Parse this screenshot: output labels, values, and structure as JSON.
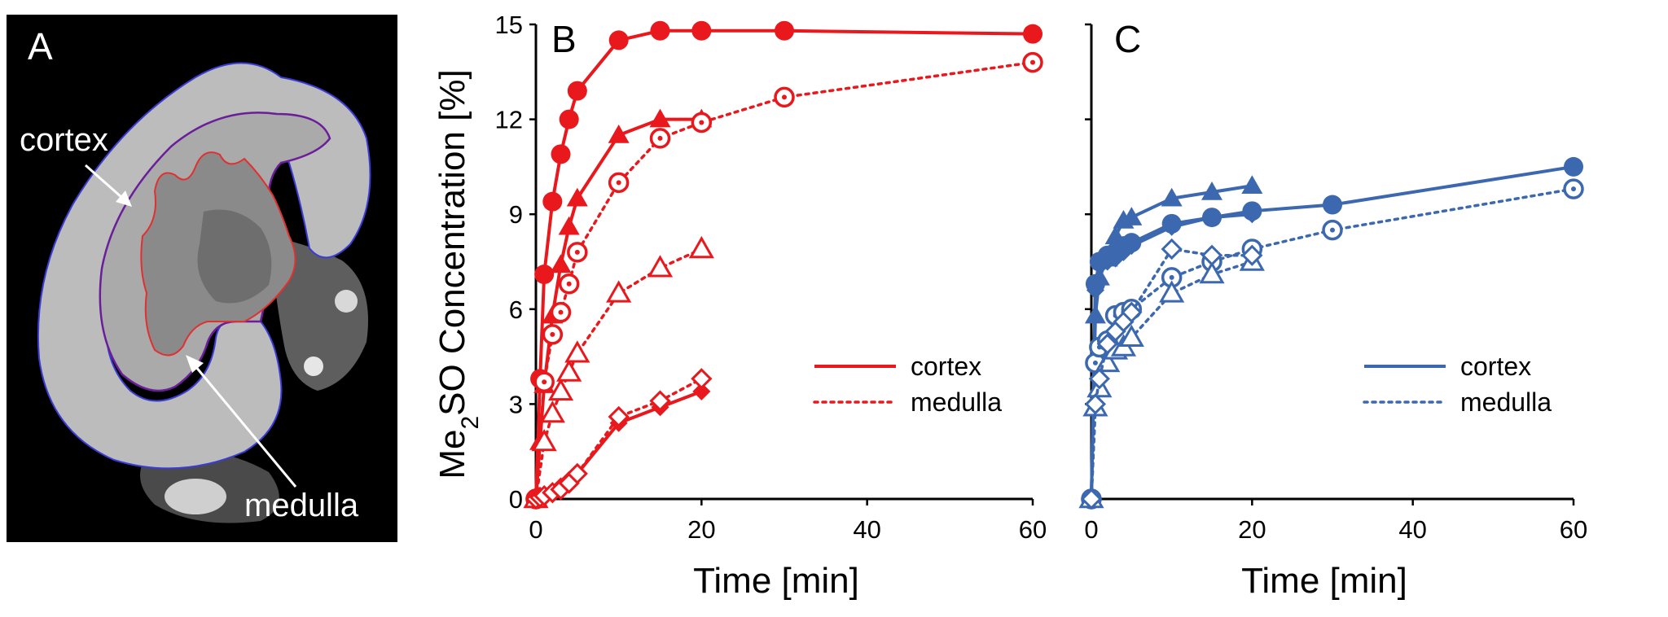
{
  "figure": {
    "panel_a": {
      "letter": "A",
      "label_cortex": "cortex",
      "label_medulla": "medulla",
      "colors": {
        "outer_contour": "#3b3bd6",
        "cortex_contour": "#6a1e9a",
        "medulla_contour": "#e03030"
      }
    },
    "ylabel_main": "Me",
    "ylabel_sub": "2",
    "ylabel_rest": "SO Concentration [%]",
    "colors": {
      "red": "#e8181c",
      "blue": "#3c68b0"
    }
  },
  "chart_data": [
    {
      "panel": "B",
      "type": "line",
      "color": "#e8181c",
      "xlabel": "Time [min]",
      "ylabel": "Me2SO Concentration [%]",
      "xlim": [
        0,
        60
      ],
      "ylim": [
        0,
        15
      ],
      "xticks": [
        "0",
        "20",
        "40",
        "60"
      ],
      "yticks": [
        "0",
        "3",
        "6",
        "9",
        "12",
        "15"
      ],
      "legend": {
        "position": "right-middle",
        "solid": "cortex",
        "dotted": "medulla"
      },
      "series": [
        {
          "name": "cortex-circle",
          "style": "solid",
          "marker": "circle-filled",
          "x": [
            0,
            0.5,
            1,
            2,
            3,
            4,
            5,
            10,
            15,
            20,
            30,
            60
          ],
          "y": [
            0,
            3.8,
            7.1,
            9.4,
            10.9,
            12.0,
            12.9,
            14.5,
            14.8,
            14.8,
            14.8,
            14.7
          ]
        },
        {
          "name": "cortex-triangle",
          "style": "solid",
          "marker": "triangle-filled",
          "x": [
            0,
            0.5,
            1,
            2,
            3,
            4,
            5,
            10,
            15,
            20
          ],
          "y": [
            0,
            1.8,
            3.6,
            5.8,
            7.4,
            8.6,
            9.5,
            11.5,
            12.0,
            12.0
          ]
        },
        {
          "name": "cortex-diamond",
          "style": "solid",
          "marker": "diamond-filled",
          "x": [
            0,
            0.5,
            1,
            2,
            3,
            4,
            5,
            10,
            15,
            20
          ],
          "y": [
            0,
            0.05,
            0.1,
            0.2,
            0.4,
            0.6,
            0.8,
            2.4,
            2.9,
            3.4
          ]
        },
        {
          "name": "medulla-circle",
          "style": "dotted",
          "marker": "circle-dot",
          "x": [
            0,
            1,
            2,
            3,
            4,
            5,
            10,
            15,
            20,
            30,
            60
          ],
          "y": [
            0,
            3.7,
            5.2,
            5.9,
            6.8,
            7.8,
            10.0,
            11.4,
            11.9,
            12.7,
            13.8
          ]
        },
        {
          "name": "medulla-triangle",
          "style": "dotted",
          "marker": "triangle-open",
          "x": [
            0,
            1,
            2,
            3,
            4,
            5,
            10,
            15,
            20
          ],
          "y": [
            0,
            1.8,
            2.7,
            3.4,
            4.0,
            4.6,
            6.5,
            7.3,
            7.9
          ]
        },
        {
          "name": "medulla-diamond",
          "style": "dotted",
          "marker": "diamond-open",
          "x": [
            0,
            0.5,
            1,
            2,
            3,
            4,
            5,
            10,
            15,
            20
          ],
          "y": [
            0,
            0.05,
            0.1,
            0.2,
            0.3,
            0.5,
            0.8,
            2.6,
            3.1,
            3.8
          ]
        }
      ]
    },
    {
      "panel": "C",
      "type": "line",
      "color": "#3c68b0",
      "xlabel": "Time [min]",
      "ylabel": "",
      "xlim": [
        0,
        60
      ],
      "ylim": [
        0,
        15
      ],
      "xticks": [
        "0",
        "20",
        "40",
        "60"
      ],
      "yticks": [],
      "legend": {
        "position": "right-middle",
        "solid": "cortex",
        "dotted": "medulla"
      },
      "series": [
        {
          "name": "cortex-circle",
          "style": "solid",
          "marker": "circle-filled",
          "x": [
            0,
            0.5,
            1,
            2,
            3,
            4,
            5,
            10,
            15,
            20,
            30,
            60
          ],
          "y": [
            0,
            6.8,
            7.5,
            7.7,
            7.8,
            8.0,
            8.1,
            8.7,
            8.9,
            9.1,
            9.3,
            10.5
          ]
        },
        {
          "name": "cortex-triangle",
          "style": "solid",
          "marker": "triangle-filled",
          "x": [
            0,
            0.5,
            1,
            2,
            3,
            4,
            5,
            10,
            15,
            20
          ],
          "y": [
            0,
            5.8,
            7.0,
            7.6,
            8.3,
            8.8,
            8.9,
            9.5,
            9.7,
            9.9
          ]
        },
        {
          "name": "cortex-diamond",
          "style": "solid",
          "marker": "diamond-filled",
          "x": [
            0,
            0.5,
            1,
            2,
            3,
            4,
            5,
            10,
            15,
            20
          ],
          "y": [
            0,
            6.6,
            7.4,
            7.5,
            7.6,
            7.8,
            8.0,
            8.6,
            8.9,
            9.0
          ]
        },
        {
          "name": "medulla-circle",
          "style": "dotted",
          "marker": "circle-dot",
          "x": [
            0,
            0.5,
            1,
            2,
            3,
            4,
            5,
            10,
            15,
            20,
            30,
            60
          ],
          "y": [
            0,
            4.3,
            4.8,
            5.0,
            5.8,
            5.9,
            6.0,
            7.0,
            7.5,
            7.9,
            8.5,
            9.8
          ]
        },
        {
          "name": "medulla-triangle",
          "style": "dotted",
          "marker": "triangle-open",
          "x": [
            0,
            0.5,
            1,
            2,
            3,
            4,
            5,
            10,
            15,
            20
          ],
          "y": [
            0,
            2.9,
            3.5,
            4.3,
            4.7,
            4.8,
            5.1,
            6.5,
            7.1,
            7.5
          ]
        },
        {
          "name": "medulla-diamond",
          "style": "dotted",
          "marker": "diamond-open",
          "x": [
            0,
            0.5,
            1,
            2,
            3,
            4,
            5,
            10,
            15,
            20
          ],
          "y": [
            0,
            3.0,
            3.8,
            4.9,
            5.3,
            5.6,
            5.9,
            7.9,
            7.7,
            7.7
          ]
        }
      ]
    }
  ]
}
